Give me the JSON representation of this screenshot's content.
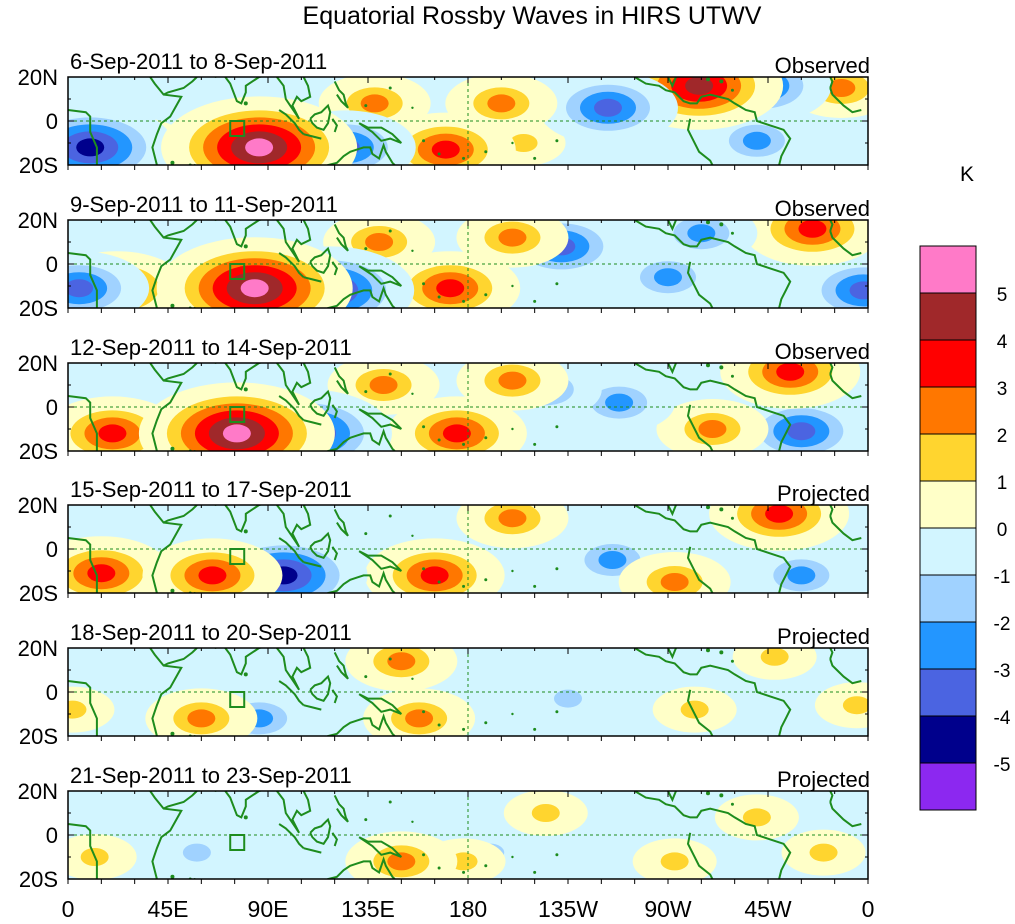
{
  "chart_data": {
    "type": "heatmap",
    "title": "Equatorial Rossby Waves in HIRS UTWV",
    "units": "K",
    "x_ticks": [
      "0",
      "45E",
      "90E",
      "135E",
      "180",
      "135W",
      "90W",
      "45W",
      "0"
    ],
    "y_ticks": [
      "20N",
      "0",
      "20S"
    ],
    "xlim": [
      0,
      360
    ],
    "ylim": [
      -20,
      20
    ],
    "colorbar": {
      "label": "K",
      "labels": [
        "5",
        "4",
        "3",
        "2",
        "1",
        "0",
        "-1",
        "-2",
        "-3",
        "-4",
        "-5"
      ],
      "colors": [
        "#ff7ac8",
        "#a0282a",
        "#ff0000",
        "#ff7700",
        "#ffd52f",
        "#ffffc8",
        "#d2f5ff",
        "#a0d2ff",
        "#2396ff",
        "#4b64e1",
        "#00008c",
        "#8c28f0"
      ]
    },
    "panels": [
      {
        "date_range": "6-Sep-2011 to 8-Sep-2011",
        "status": "Observed",
        "anomalies": [
          {
            "lon": 86,
            "lat": -12,
            "value": 5.6
          },
          {
            "lon": 10,
            "lat": -12,
            "value": -4.2
          },
          {
            "lon": 30,
            "lat": -12,
            "value": 2.2
          },
          {
            "lon": 125,
            "lat": -12,
            "value": -3.2
          },
          {
            "lon": 170,
            "lat": -13,
            "value": 3.2
          },
          {
            "lon": 138,
            "lat": 8,
            "value": 2.2
          },
          {
            "lon": 195,
            "lat": 8,
            "value": 2.4
          },
          {
            "lon": 243,
            "lat": 6,
            "value": -3.2
          },
          {
            "lon": 284,
            "lat": 16,
            "value": 4.2
          },
          {
            "lon": 312,
            "lat": 16,
            "value": -3.1
          },
          {
            "lon": 310,
            "lat": -9,
            "value": -2.3
          },
          {
            "lon": 205,
            "lat": -10,
            "value": 1.4
          },
          {
            "lon": 348,
            "lat": 15,
            "value": 2.6
          }
        ]
      },
      {
        "date_range": "9-Sep-2011 to 11-Sep-2011",
        "status": "Observed",
        "anomalies": [
          {
            "lon": 84,
            "lat": -11,
            "value": 5.7
          },
          {
            "lon": 5,
            "lat": -11,
            "value": -3.6
          },
          {
            "lon": 22,
            "lat": -11,
            "value": 3.2
          },
          {
            "lon": 118,
            "lat": -12,
            "value": -4.8
          },
          {
            "lon": 172,
            "lat": -11,
            "value": 3.4
          },
          {
            "lon": 140,
            "lat": 10,
            "value": 2.6
          },
          {
            "lon": 200,
            "lat": 12,
            "value": 2.4
          },
          {
            "lon": 222,
            "lat": 8,
            "value": -3.1
          },
          {
            "lon": 285,
            "lat": 14,
            "value": -2.6
          },
          {
            "lon": 335,
            "lat": 16,
            "value": 3.1
          },
          {
            "lon": 270,
            "lat": -6,
            "value": -2.2
          },
          {
            "lon": 358,
            "lat": -12,
            "value": -3.3
          }
        ]
      },
      {
        "date_range": "12-Sep-2011 to 14-Sep-2011",
        "status": "Observed",
        "anomalies": [
          {
            "lon": 76,
            "lat": -12,
            "value": 5.4
          },
          {
            "lon": 20,
            "lat": -12,
            "value": 3.4
          },
          {
            "lon": 108,
            "lat": -12,
            "value": -4.6
          },
          {
            "lon": 175,
            "lat": -12,
            "value": 3.4
          },
          {
            "lon": 142,
            "lat": 10,
            "value": 2.3
          },
          {
            "lon": 200,
            "lat": 12,
            "value": 2.3
          },
          {
            "lon": 215,
            "lat": 8,
            "value": -2.4
          },
          {
            "lon": 248,
            "lat": 2,
            "value": -3.0
          },
          {
            "lon": 325,
            "lat": 16,
            "value": 3.1
          },
          {
            "lon": 290,
            "lat": -10,
            "value": 2.3
          },
          {
            "lon": 330,
            "lat": -11,
            "value": -3.1
          },
          {
            "lon": 55,
            "lat": -10,
            "value": -2.1
          }
        ]
      },
      {
        "date_range": "15-Sep-2011 to 17-Sep-2011",
        "status": "Projected",
        "anomalies": [
          {
            "lon": 65,
            "lat": -12,
            "value": 3.6
          },
          {
            "lon": 15,
            "lat": -11,
            "value": 3.1
          },
          {
            "lon": 97,
            "lat": -12,
            "value": -4.2
          },
          {
            "lon": 165,
            "lat": -12,
            "value": 3.5
          },
          {
            "lon": 200,
            "lat": 14,
            "value": 2.4
          },
          {
            "lon": 320,
            "lat": 16,
            "value": 3.1
          },
          {
            "lon": 273,
            "lat": -15,
            "value": 2.6
          },
          {
            "lon": 330,
            "lat": -12,
            "value": -2.2
          },
          {
            "lon": 245,
            "lat": -5,
            "value": -2.1
          },
          {
            "lon": 48,
            "lat": -11,
            "value": -2.2
          }
        ]
      },
      {
        "date_range": "18-Sep-2011 to 20-Sep-2011",
        "status": "Projected",
        "anomalies": [
          {
            "lon": 60,
            "lat": -12,
            "value": 2.4
          },
          {
            "lon": 86,
            "lat": -12,
            "value": -2.3
          },
          {
            "lon": 158,
            "lat": -12,
            "value": 2.8
          },
          {
            "lon": 150,
            "lat": 14,
            "value": 2.4
          },
          {
            "lon": 225,
            "lat": -3,
            "value": -1.9
          },
          {
            "lon": 282,
            "lat": -8,
            "value": 1.7
          },
          {
            "lon": 318,
            "lat": 16,
            "value": 1.8
          },
          {
            "lon": 355,
            "lat": -6,
            "value": 1.5
          },
          {
            "lon": 2,
            "lat": -8,
            "value": 1.6
          }
        ]
      },
      {
        "date_range": "21-Sep-2011 to 23-Sep-2011",
        "status": "Projected",
        "anomalies": [
          {
            "lon": 150,
            "lat": -12,
            "value": 2.1
          },
          {
            "lon": 178,
            "lat": -12,
            "value": 1.7
          },
          {
            "lon": 273,
            "lat": -12,
            "value": 1.5
          },
          {
            "lon": 190,
            "lat": -8,
            "value": -1.4
          },
          {
            "lon": 215,
            "lat": 10,
            "value": 1.3
          },
          {
            "lon": 58,
            "lat": -8,
            "value": -1.5
          },
          {
            "lon": 310,
            "lat": 8,
            "value": 1.3
          },
          {
            "lon": 340,
            "lat": -8,
            "value": 1.3
          },
          {
            "lon": 12,
            "lat": -10,
            "value": 1.3
          }
        ]
      }
    ]
  },
  "map_style": {
    "coast_color": "#1e8c1e",
    "equator_line_color": "#1e8c1e",
    "box_color": "#1e8c1e"
  }
}
